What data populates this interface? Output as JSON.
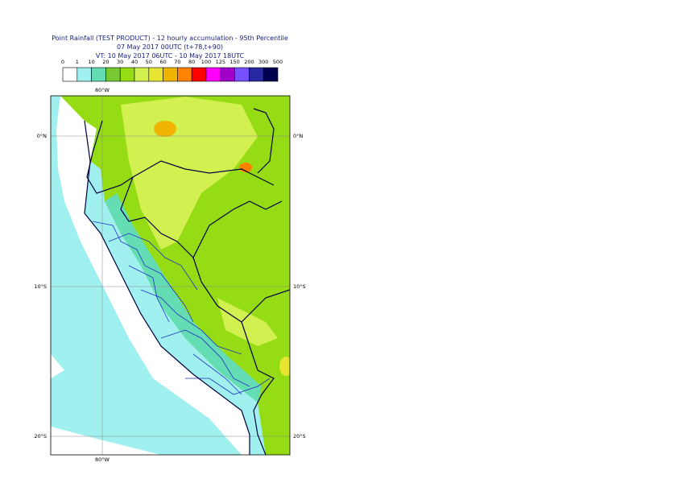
{
  "title": [
    "Point Rainfall (TEST PRODUCT) - 12 hourly accumulation - 95th Percentile",
    "07 May 2017 00UTC (t+78,t+90)",
    "VT: 10 May 2017 06UTC - 10 May 2017 18UTC"
  ],
  "legend": {
    "labels": [
      "0",
      "1",
      "10",
      "20",
      "30",
      "40",
      "50",
      "60",
      "70",
      "80",
      "100",
      "125",
      "150",
      "200",
      "300",
      "500"
    ],
    "colors": [
      "#ffffff",
      "#a0f0f0",
      "#64dcb4",
      "#78c832",
      "#96dc14",
      "#d2f050",
      "#e6e632",
      "#f0b400",
      "#ff8200",
      "#ff0000",
      "#ff00ff",
      "#a000c8",
      "#7850ff",
      "#2828a0",
      "#000050"
    ]
  },
  "map": {
    "lat_labels": [
      "0°N",
      "10°S",
      "20°S"
    ],
    "lon_labels": [
      "80°W"
    ]
  }
}
